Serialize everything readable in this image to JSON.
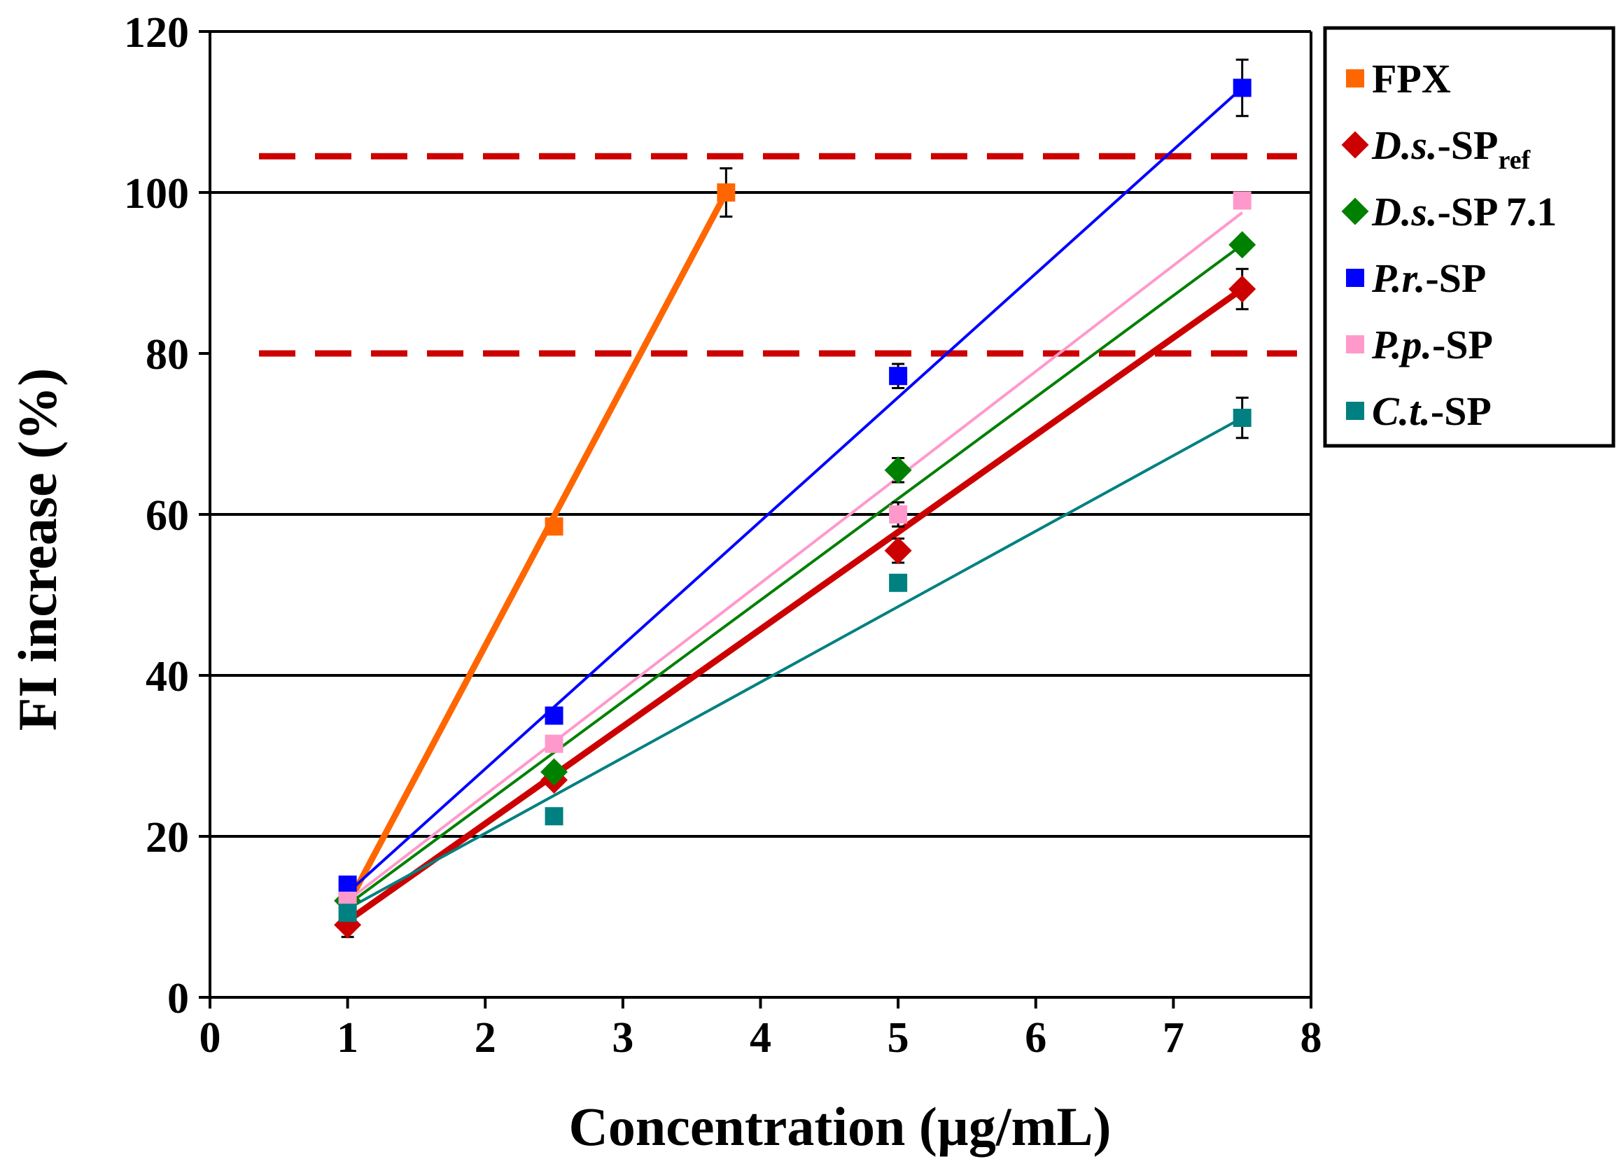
{
  "chart_data": {
    "type": "scatter",
    "title": "",
    "xlabel": "Concentration (µg/mL)",
    "ylabel": "FI increase (%)",
    "xlim": [
      0,
      8
    ],
    "ylim": [
      0,
      120
    ],
    "x_ticks": [
      0,
      1,
      2,
      3,
      4,
      5,
      6,
      7,
      8
    ],
    "y_ticks": [
      0,
      20,
      40,
      60,
      80,
      100,
      120
    ],
    "x_tick_labels": [
      "0",
      "1",
      "2",
      "3",
      "4",
      "5",
      "6",
      "7",
      "8"
    ],
    "y_tick_labels": [
      "0",
      "20",
      "40",
      "60",
      "80",
      "100",
      "120"
    ],
    "grid_y": [
      20,
      40,
      60,
      100
    ],
    "reference_lines": [
      {
        "y": 80,
        "style": "dashed",
        "color": "#cc0000"
      },
      {
        "y": 104.5,
        "style": "dashed",
        "color": "#cc0000"
      }
    ],
    "legend_position": "right",
    "series": [
      {
        "name": "FPX",
        "name_italic": "",
        "name_main": "FPX",
        "name_sub": "",
        "color": "#ff6600",
        "marker": "square",
        "line_weight": "thick",
        "x": [
          1,
          2.5,
          3.75
        ],
        "y": [
          12,
          58.5,
          100
        ],
        "err": [
          0,
          0,
          3
        ],
        "fit": [
          [
            1,
            11.5
          ],
          [
            3.75,
            100
          ]
        ]
      },
      {
        "name": "D.s.-SPref",
        "name_italic": "D.s.",
        "name_main": "-SP",
        "name_sub": "ref",
        "color": "#cc0000",
        "marker": "diamond",
        "line_weight": "thick",
        "x": [
          1,
          2.5,
          5,
          7.5
        ],
        "y": [
          9,
          27,
          55.5,
          88
        ],
        "err": [
          1.5,
          0,
          1.5,
          2.5
        ],
        "fit": [
          [
            1,
            9.5
          ],
          [
            7.5,
            88
          ]
        ]
      },
      {
        "name": "D.s.-SP 7.1",
        "name_italic": "D.s.",
        "name_main": "-SP 7.1",
        "name_sub": "",
        "color": "#008000",
        "marker": "diamond",
        "line_weight": "thin",
        "x": [
          1,
          2.5,
          5,
          7.5
        ],
        "y": [
          12,
          28,
          65.5,
          93.5
        ],
        "err": [
          0,
          0,
          1.5,
          0
        ],
        "fit": [
          [
            1,
            11.5
          ],
          [
            7.5,
            93.5
          ]
        ]
      },
      {
        "name": "P.r.-SP",
        "name_italic": "P.r.",
        "name_main": "-SP",
        "name_sub": "",
        "color": "#0000ff",
        "marker": "square",
        "line_weight": "thin",
        "x": [
          1,
          2.5,
          5,
          7.5
        ],
        "y": [
          14,
          35,
          77.2,
          113
        ],
        "err": [
          0,
          0,
          1.5,
          3.5
        ],
        "fit": [
          [
            1,
            13
          ],
          [
            7.5,
            113
          ]
        ]
      },
      {
        "name": "P.p.-SP",
        "name_italic": "P.p.",
        "name_main": "-SP",
        "name_sub": "",
        "color": "#ff99cc",
        "marker": "square",
        "line_weight": "thin",
        "x": [
          1,
          2.5,
          5,
          7.5
        ],
        "y": [
          12,
          31.5,
          60,
          99
        ],
        "err": [
          0,
          0,
          1.5,
          0
        ],
        "fit": [
          [
            1,
            12
          ],
          [
            7.5,
            97.5
          ]
        ]
      },
      {
        "name": "C.t.-SP",
        "name_italic": "C.t.",
        "name_main": "-SP",
        "name_sub": "",
        "color": "#008080",
        "marker": "square",
        "line_weight": "thin",
        "x": [
          1,
          2.5,
          5,
          7.5
        ],
        "y": [
          10.5,
          22.5,
          51.5,
          72
        ],
        "err": [
          0,
          0,
          0,
          2.5
        ],
        "fit": [
          [
            1,
            11
          ],
          [
            7.5,
            72
          ]
        ]
      }
    ]
  }
}
